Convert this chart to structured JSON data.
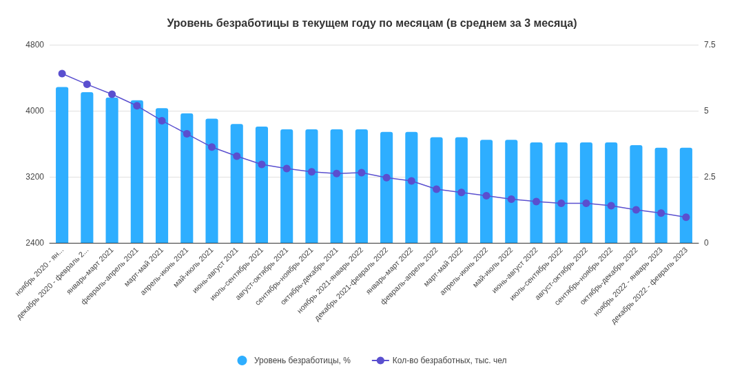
{
  "chart_data": {
    "type": "bar",
    "title": "Уровень безработицы в текущем году по месяцам (в среднем за 3 месяца)",
    "categories": [
      "ноябрь 2020 - ян...",
      "декабрь 2020 - февраль 2...",
      "январь-март 2021",
      "февраль-апрель 2021",
      "март-май 2021",
      "апрель-июнь 2021",
      "май-июль 2021",
      "июнь-август 2021",
      "июль-сентябрь 2021",
      "август-октябрь 2021",
      "сентябрь-ноябрь 2021",
      "октябрь-декабрь 2021",
      "ноябрь 2021-январь 2022",
      "декабрь 2021-февраль 2022",
      "январь-март 2022",
      "февраль-апрель 2022",
      "март-май 2022",
      "апрель-июнь 2022",
      "май-июль 2022",
      "июнь-август 2022",
      "июль-сентябрь 2022",
      "август-октябрь 2022",
      "сентябрь-ноябрь 2022",
      "октябрь-декабрь 2022",
      "ноябрь 2022 - январь 2023",
      "декабрь 2022 - февраль 2023"
    ],
    "series": [
      {
        "name": "Уровень безработицы, %",
        "axis": "y2",
        "color": "#2eaeff",
        "values": [
          5.9,
          5.7,
          5.5,
          5.4,
          5.1,
          4.9,
          4.7,
          4.5,
          4.4,
          4.3,
          4.3,
          4.3,
          4.3,
          4.2,
          4.2,
          4.0,
          4.0,
          3.9,
          3.9,
          3.8,
          3.8,
          3.8,
          3.8,
          3.7,
          3.6,
          3.6
        ]
      },
      {
        "name": "Кол-во безработных, тыс. чел",
        "type": "line",
        "axis": "y",
        "color": "#5a4fcf",
        "marker": "circle",
        "values": [
          4450,
          4320,
          4200,
          4060,
          3880,
          3720,
          3560,
          3450,
          3350,
          3300,
          3260,
          3240,
          3250,
          3190,
          3150,
          3050,
          3010,
          2970,
          2930,
          2900,
          2880,
          2880,
          2850,
          2800,
          2760,
          2710
        ]
      }
    ],
    "ylim": [
      2400,
      4800
    ],
    "yticks": [
      2400,
      3200,
      4000,
      4800
    ],
    "y2lim": [
      0,
      7.5
    ],
    "y2ticks": [
      0,
      2.5,
      5,
      7.5
    ],
    "grid": "y",
    "legend": "bottom"
  }
}
